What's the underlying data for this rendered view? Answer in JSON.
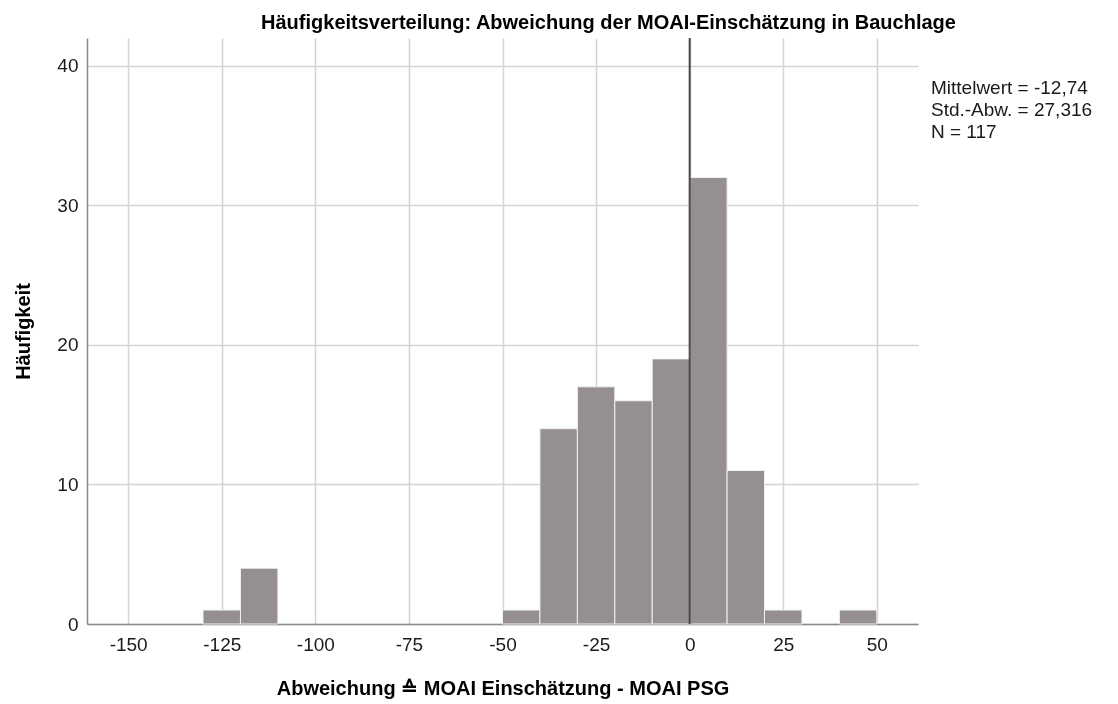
{
  "chart_data": {
    "type": "histogram",
    "title": "Häufigkeitsverteilung: Abweichung der MOAI-Einschätzung in Bauchlage",
    "xlabel": "Abweichung ≙ MOAI Einschätzung - MOAI PSG",
    "ylabel": "Häufigkeit",
    "bins": [
      -130,
      -120,
      -110,
      -100,
      -90,
      -80,
      -70,
      -60,
      -50,
      -40,
      -30,
      -20,
      -10,
      0,
      10,
      20,
      30,
      40,
      50
    ],
    "values": [
      1,
      4,
      0,
      0,
      0,
      0,
      0,
      0,
      1,
      14,
      17,
      16,
      19,
      32,
      11,
      1,
      0,
      1
    ],
    "color": "#95908f",
    "xlim": [
      -161,
      61
    ],
    "xticks": [
      -150,
      -125,
      -100,
      -75,
      -50,
      -25,
      0,
      25,
      50
    ],
    "ylim": [
      0,
      42
    ],
    "yticks": [
      0,
      10,
      20,
      30,
      40
    ],
    "grid": true,
    "ref_lines": [
      {
        "axis": "x",
        "value": 0,
        "color": "#4a4a4a"
      }
    ],
    "annotations": [
      "Mittelwert = -12,74",
      "Std.-Abw. = 27,316",
      "N = 117"
    ]
  }
}
